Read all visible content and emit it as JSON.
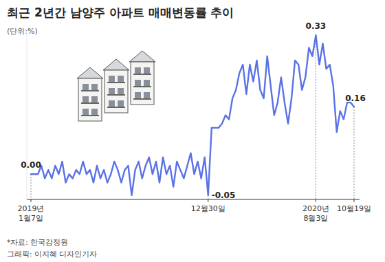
{
  "chart_data": {
    "type": "line",
    "title": "최근 2년간 남양주 아파트 매매변동률 추이",
    "subtitle": "(단위:%)",
    "source": "*자료: 한국감정원",
    "credit": "그래픽: 이지혜 디자인기자",
    "color": "#5a72e6",
    "grid": false,
    "tick_labels": "x",
    "data_labels": true,
    "ylim": [
      -0.06,
      0.34
    ],
    "yticks": [],
    "categories": [
      "2019년 1월7일",
      null,
      null,
      null,
      null,
      null,
      null,
      null,
      null,
      null,
      null,
      null,
      null,
      null,
      null,
      null,
      null,
      null,
      null,
      null,
      null,
      null,
      null,
      null,
      null,
      null,
      null,
      null,
      null,
      null,
      null,
      null,
      null,
      null,
      null,
      null,
      null,
      null,
      null,
      null,
      null,
      null,
      null,
      null,
      null,
      null,
      null,
      null,
      null,
      null,
      null,
      "12월30일",
      null,
      null,
      null,
      null,
      null,
      null,
      null,
      null,
      null,
      null,
      null,
      null,
      null,
      null,
      null,
      null,
      null,
      null,
      null,
      null,
      null,
      null,
      null,
      null,
      null,
      null,
      null,
      null,
      null,
      null,
      "2020년 8월3일",
      null,
      null,
      null,
      null,
      null,
      null,
      null,
      null,
      null,
      null,
      "10월19일"
    ],
    "values": [
      0.0,
      0.0,
      0.0,
      0.02,
      -0.01,
      0.01,
      -0.01,
      0.02,
      0.0,
      0.03,
      -0.02,
      0.0,
      -0.01,
      0.01,
      0.0,
      0.03,
      0.0,
      0.01,
      -0.02,
      0.02,
      -0.01,
      0.01,
      -0.02,
      0.0,
      0.03,
      0.01,
      -0.02,
      0.01,
      0.02,
      -0.05,
      0.01,
      0.03,
      -0.01,
      0.02,
      0.04,
      0.0,
      0.03,
      -0.02,
      0.04,
      0.0,
      0.02,
      -0.03,
      0.03,
      0.01,
      -0.01,
      0.02,
      0.05,
      0.0,
      0.03,
      -0.01,
      0.04,
      -0.05,
      0.11,
      0.11,
      0.11,
      0.12,
      0.14,
      0.13,
      0.18,
      0.2,
      0.24,
      0.26,
      0.19,
      0.26,
      0.22,
      0.27,
      0.2,
      0.18,
      0.28,
      0.21,
      0.14,
      0.17,
      0.23,
      0.17,
      0.12,
      0.18,
      0.27,
      0.26,
      0.2,
      0.23,
      0.3,
      0.28,
      0.33,
      0.26,
      0.31,
      0.25,
      0.26,
      0.21,
      0.1,
      0.15,
      0.13,
      0.17,
      0.17,
      0.16
    ],
    "value_labels": [
      "0.00",
      null,
      null,
      null,
      null,
      null,
      null,
      null,
      null,
      null,
      null,
      null,
      null,
      null,
      null,
      null,
      null,
      null,
      null,
      null,
      null,
      null,
      null,
      null,
      null,
      null,
      null,
      null,
      null,
      null,
      null,
      null,
      null,
      null,
      null,
      null,
      null,
      null,
      null,
      null,
      null,
      null,
      null,
      null,
      null,
      null,
      null,
      null,
      null,
      null,
      null,
      "-0.05",
      null,
      null,
      null,
      null,
      null,
      null,
      null,
      null,
      null,
      null,
      null,
      null,
      null,
      null,
      null,
      null,
      null,
      null,
      null,
      null,
      null,
      null,
      null,
      null,
      null,
      null,
      null,
      null,
      null,
      null,
      "0.33",
      null,
      null,
      null,
      null,
      null,
      null,
      null,
      null,
      null,
      null,
      "0.16"
    ]
  }
}
